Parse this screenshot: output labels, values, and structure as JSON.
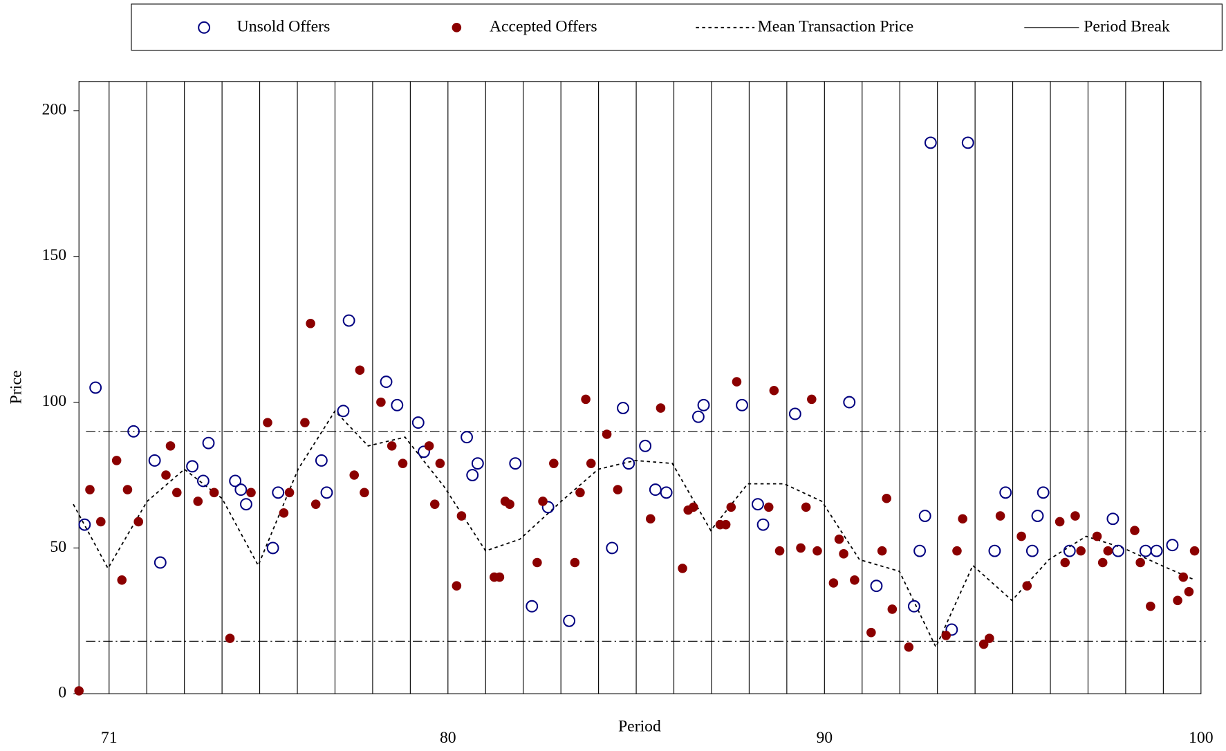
{
  "chart_data": {
    "type": "scatter",
    "x_label": "Period",
    "y_label": "Price",
    "xlim": [
      70.2,
      100
    ],
    "xticks": [
      71,
      80,
      90,
      100
    ],
    "ylim": [
      0,
      210
    ],
    "yticks": [
      0,
      50,
      100,
      150,
      200
    ],
    "reference_lines": [
      90,
      18
    ],
    "series": [
      {
        "name": "Unsold Offers",
        "color": "#000080",
        "style": "open",
        "x": [
          70.35,
          70.64,
          71.65,
          72.21,
          72.36,
          73.21,
          73.5,
          73.64,
          74.35,
          74.5,
          74.64,
          75.35,
          75.49,
          76.64,
          76.78,
          77.22,
          77.37,
          78.36,
          78.65,
          79.21,
          79.36,
          80.5,
          80.65,
          80.79,
          81.79,
          82.23,
          82.66,
          83.22,
          84.36,
          84.65,
          84.8,
          85.24,
          85.51,
          85.8,
          86.65,
          86.79,
          87.81,
          88.23,
          88.37,
          89.22,
          90.66,
          91.38,
          92.38,
          92.53,
          92.67,
          92.82,
          93.38,
          93.81,
          94.52,
          94.81,
          95.52,
          95.66,
          95.81,
          96.51,
          97.66,
          97.8,
          98.53,
          98.82,
          99.24
        ],
        "values": [
          58,
          105,
          90,
          80,
          45,
          78,
          73,
          86,
          73,
          70,
          65,
          50,
          69,
          80,
          69,
          97,
          128,
          107,
          99,
          93,
          83,
          88,
          75,
          79,
          79,
          30,
          64,
          25,
          50,
          98,
          79,
          85,
          70,
          69,
          95,
          99,
          99,
          65,
          58,
          96,
          100,
          37,
          30,
          49,
          61,
          189,
          22,
          189,
          49,
          69,
          49,
          61,
          69,
          49,
          60,
          49,
          49,
          49,
          51
        ]
      },
      {
        "name": "Accepted Offers",
        "color": "#8b0000",
        "style": "filled",
        "x": [
          70.2,
          70.49,
          70.78,
          71.2,
          71.34,
          71.49,
          71.78,
          72.51,
          72.63,
          72.8,
          73.36,
          73.79,
          74.21,
          74.77,
          75.21,
          75.64,
          75.79,
          76.2,
          76.35,
          76.49,
          77.51,
          77.66,
          77.78,
          78.22,
          78.51,
          78.8,
          79.5,
          79.65,
          79.79,
          80.23,
          80.36,
          81.23,
          81.37,
          81.52,
          81.64,
          82.37,
          82.52,
          82.81,
          83.37,
          83.51,
          83.66,
          83.8,
          84.22,
          84.51,
          85.38,
          85.65,
          86.23,
          86.38,
          86.52,
          87.23,
          87.38,
          87.52,
          87.67,
          88.52,
          88.66,
          88.81,
          89.37,
          89.51,
          89.66,
          89.81,
          90.24,
          90.39,
          90.51,
          90.8,
          91.24,
          91.53,
          91.65,
          91.8,
          92.24,
          93.23,
          93.52,
          93.67,
          94.23,
          94.38,
          94.67,
          95.23,
          95.38,
          96.25,
          96.39,
          96.66,
          96.81,
          97.24,
          97.39,
          97.53,
          98.24,
          98.39,
          98.66,
          99.38,
          99.53,
          99.68,
          99.83
        ],
        "values": [
          1,
          70,
          59,
          80,
          39,
          70,
          59,
          75,
          85,
          69,
          66,
          69,
          19,
          69,
          93,
          62,
          69,
          93,
          127,
          65,
          75,
          111,
          69,
          100,
          85,
          79,
          85,
          65,
          79,
          37,
          61,
          40,
          40,
          66,
          65,
          45,
          66,
          79,
          45,
          69,
          101,
          79,
          89,
          70,
          60,
          98,
          43,
          63,
          64,
          58,
          58,
          64,
          107,
          64,
          104,
          49,
          50,
          64,
          101,
          49,
          38,
          53,
          48,
          39,
          21,
          49,
          67,
          29,
          16,
          20,
          49,
          60,
          17,
          19,
          61,
          54,
          37,
          59,
          45,
          61,
          49,
          54,
          45,
          49,
          56,
          45,
          30,
          32,
          40,
          35,
          49
        ]
      },
      {
        "name": "Mean Transaction Price",
        "color": "#000000",
        "style": "dashed",
        "x": [
          70.05,
          70.97,
          72.01,
          73,
          74,
          74.96,
          76.02,
          77,
          77.88,
          78.86,
          79.9,
          81,
          81.91,
          83.01,
          83.99,
          84.97,
          85.96,
          86.98,
          87.96,
          88.93,
          89.93,
          90.93,
          91.99,
          92.96,
          93.94,
          94.98,
          95.96,
          96.95,
          97.93,
          98.95,
          99.84
        ],
        "values": [
          65,
          43,
          66,
          77,
          67,
          44,
          77,
          97,
          85,
          88,
          71,
          49,
          53,
          66,
          77,
          80,
          79,
          56,
          72,
          72,
          66,
          46,
          42,
          16,
          44,
          32,
          46,
          54,
          50,
          44,
          39
        ]
      },
      {
        "name": "Period Break",
        "color": "#000000",
        "style": "vline",
        "x": [
          71,
          72,
          73,
          74,
          75,
          76,
          77,
          78,
          79,
          80,
          81,
          82,
          83,
          84,
          85,
          86,
          87,
          88,
          89,
          90,
          91,
          92,
          93,
          94,
          95,
          96,
          97,
          98,
          99
        ]
      }
    ]
  }
}
